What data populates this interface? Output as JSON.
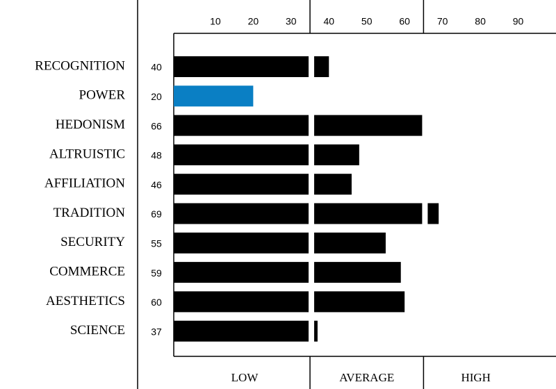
{
  "chart_data": {
    "type": "bar",
    "orientation": "horizontal",
    "categories": [
      "RECOGNITION",
      "POWER",
      "HEDONISM",
      "ALTRUISTIC",
      "AFFILIATION",
      "TRADITION",
      "SECURITY",
      "COMMERCE",
      "AESTHETICS",
      "SCIENCE"
    ],
    "values": [
      40,
      20,
      66,
      48,
      46,
      69,
      55,
      59,
      60,
      37
    ],
    "colors": [
      "#000000",
      "#0a7fc4",
      "#000000",
      "#000000",
      "#000000",
      "#000000",
      "#000000",
      "#000000",
      "#000000",
      "#000000"
    ],
    "xlim": [
      -1,
      100
    ],
    "xticks": [
      10,
      20,
      30,
      40,
      50,
      60,
      70,
      80,
      90
    ],
    "bands": [
      "LOW",
      "AVERAGE",
      "HIGH"
    ],
    "band_edges": [
      35,
      65
    ]
  }
}
